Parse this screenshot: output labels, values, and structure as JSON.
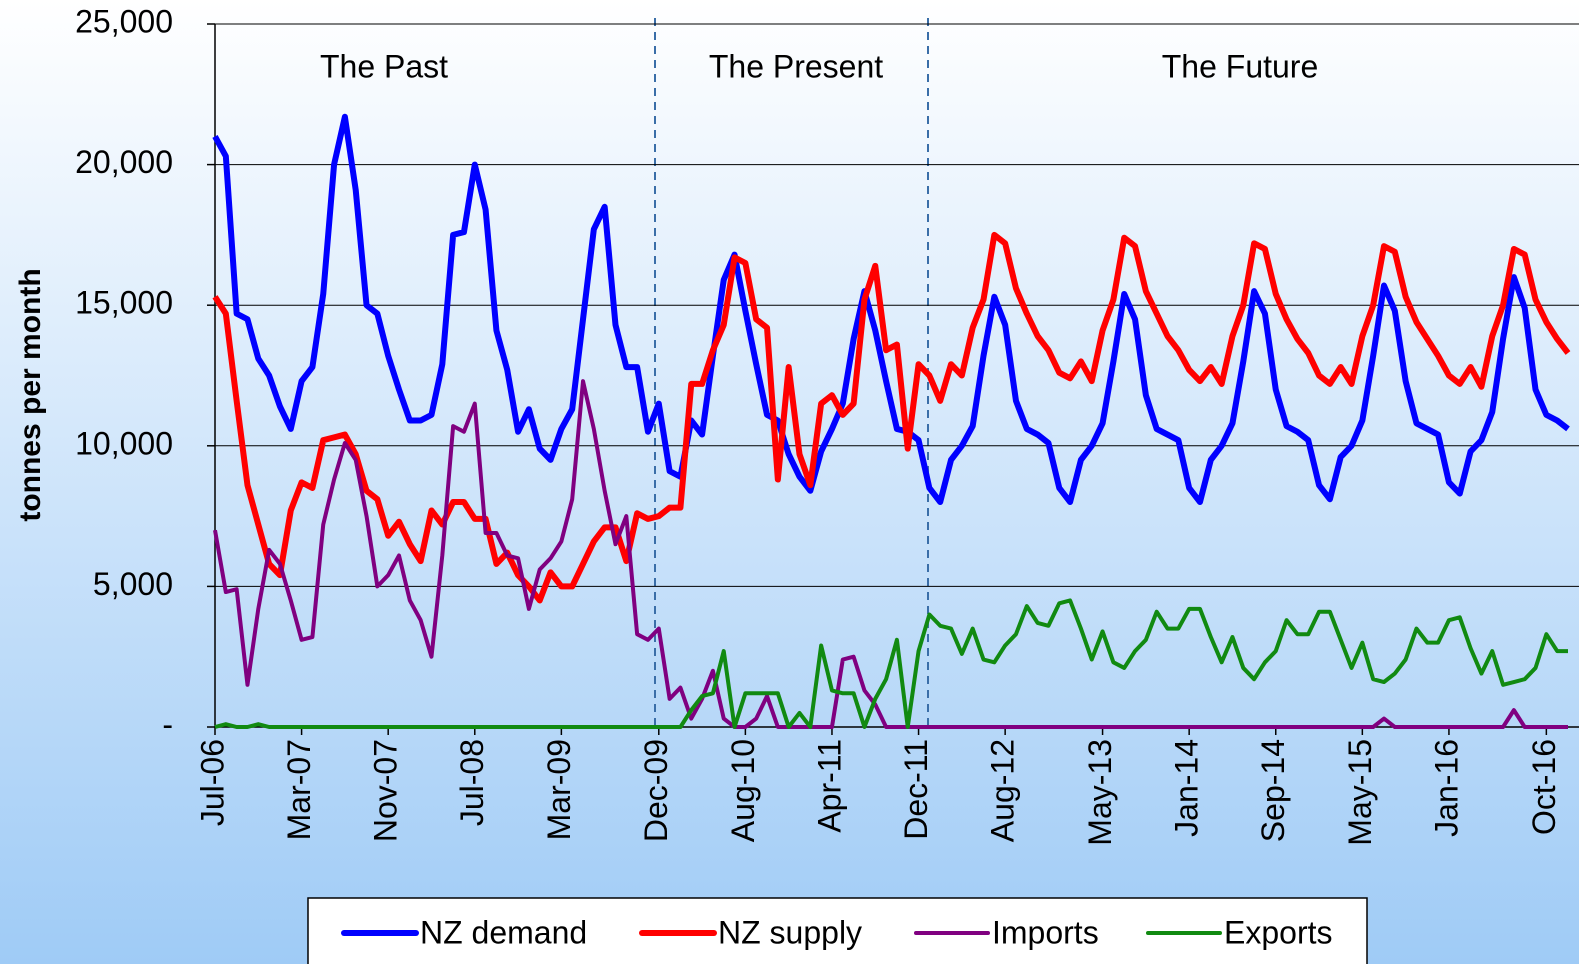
{
  "chart_data": {
    "type": "line",
    "y_label": "tonnes per month",
    "annotations": [
      "The Past",
      "The Present",
      "The Future"
    ],
    "categories": [
      "Jul-06",
      null,
      null,
      null,
      null,
      null,
      null,
      null,
      "Mar-07",
      null,
      null,
      null,
      null,
      null,
      null,
      null,
      "Nov-07",
      null,
      null,
      null,
      null,
      null,
      null,
      null,
      "Jul-08",
      null,
      null,
      null,
      null,
      null,
      null,
      null,
      "Mar-09",
      null,
      null,
      null,
      null,
      null,
      null,
      null,
      null,
      "Dec-09",
      null,
      null,
      null,
      null,
      null,
      null,
      null,
      "Aug-10",
      null,
      null,
      null,
      null,
      null,
      null,
      null,
      "Apr-11",
      null,
      null,
      null,
      null,
      null,
      null,
      null,
      "Dec-11",
      null,
      null,
      null,
      null,
      null,
      null,
      null,
      "Aug-12",
      null,
      null,
      null,
      null,
      null,
      null,
      null,
      null,
      "May-13",
      null,
      null,
      null,
      null,
      null,
      null,
      null,
      "Jan-14",
      null,
      null,
      null,
      null,
      null,
      null,
      null,
      "Sep-14",
      null,
      null,
      null,
      null,
      null,
      null,
      null,
      "May-15",
      null,
      null,
      null,
      null,
      null,
      null,
      null,
      "Jan-16",
      null,
      null,
      null,
      null,
      null,
      null,
      null,
      null,
      "Oct-16",
      null,
      null
    ],
    "series": [
      {
        "name": "NZ demand",
        "color": "#0000ff",
        "values": [
          21000,
          20300,
          14700,
          14500,
          13100,
          12500,
          11400,
          10600,
          12300,
          12800,
          15400,
          20000,
          21700,
          19100,
          15000,
          14700,
          13200,
          12000,
          10900,
          10900,
          11100,
          12900,
          17500,
          17600,
          20000,
          18400,
          14100,
          12700,
          10500,
          11300,
          9900,
          9500,
          10600,
          11300,
          14500,
          17700,
          18500,
          14300,
          12800,
          12800,
          10500,
          11500,
          9100,
          8900,
          10900,
          10400,
          13200,
          15900,
          16800,
          14800,
          12900,
          11100,
          10900,
          9700,
          8900,
          8400,
          9800,
          10600,
          11500,
          13800,
          15500,
          14100,
          12300,
          10600,
          10500,
          10200,
          8500,
          8000,
          9500,
          10000,
          10700,
          13200,
          15300,
          14300,
          11600,
          10600,
          10400,
          10100,
          8500,
          8000,
          9500,
          10000,
          10800,
          13000,
          15400,
          14500,
          11800,
          10600,
          10400,
          10200,
          8500,
          8000,
          9500,
          10000,
          10800,
          13000,
          15500,
          14700,
          12000,
          10700,
          10500,
          10200,
          8600,
          8100,
          9600,
          10000,
          10900,
          13200,
          15700,
          14800,
          12300,
          10800,
          10600,
          10400,
          8700,
          8300,
          9800,
          10200,
          11200,
          13800,
          16000,
          14900,
          12000,
          11100,
          10900,
          10600
        ]
      },
      {
        "name": "NZ supply",
        "color": "#ff0000",
        "values": [
          15300,
          14700,
          11600,
          8600,
          7200,
          5800,
          5400,
          7700,
          8700,
          8500,
          10200,
          10300,
          10400,
          9700,
          8400,
          8100,
          6800,
          7300,
          6500,
          5900,
          7700,
          7200,
          8000,
          8000,
          7400,
          7400,
          5800,
          6200,
          5400,
          5000,
          4500,
          5500,
          5000,
          5000,
          5800,
          6600,
          7100,
          7100,
          5900,
          7600,
          7400,
          7500,
          7800,
          7800,
          12200,
          12200,
          13400,
          14300,
          16700,
          16500,
          14500,
          14200,
          8800,
          12800,
          9700,
          8600,
          11500,
          11800,
          11100,
          11500,
          15200,
          16400,
          13400,
          13600,
          9900,
          12900,
          12500,
          11600,
          12900,
          12500,
          14200,
          15200,
          17500,
          17200,
          15600,
          14700,
          13900,
          13400,
          12600,
          12400,
          13000,
          12300,
          14100,
          15200,
          17400,
          17100,
          15500,
          14700,
          13900,
          13400,
          12700,
          12300,
          12800,
          12200,
          13900,
          15000,
          17200,
          17000,
          15400,
          14500,
          13800,
          13300,
          12500,
          12200,
          12800,
          12200,
          13900,
          15000,
          17100,
          16900,
          15300,
          14400,
          13800,
          13200,
          12500,
          12200,
          12800,
          12100,
          13900,
          15000,
          17000,
          16800,
          15200,
          14400,
          13800,
          13300
        ]
      },
      {
        "name": "Imports",
        "color": "#800080",
        "values": [
          7000,
          4800,
          4900,
          1500,
          4200,
          6300,
          5800,
          4500,
          3100,
          3200,
          7200,
          8800,
          10100,
          9500,
          7500,
          5000,
          5400,
          6100,
          4500,
          3800,
          2500,
          6100,
          10700,
          10500,
          11500,
          6900,
          6900,
          6100,
          6000,
          4200,
          5600,
          6000,
          6600,
          8100,
          12300,
          10600,
          8400,
          6500,
          7500,
          3300,
          3100,
          3500,
          1000,
          1400,
          300,
          1000,
          2000,
          300,
          0,
          0,
          300,
          1100,
          0,
          0,
          0,
          0,
          0,
          0,
          2400,
          2500,
          1300,
          800,
          0,
          0,
          0,
          0,
          0,
          0,
          0,
          0,
          0,
          0,
          0,
          0,
          0,
          0,
          0,
          0,
          0,
          0,
          0,
          0,
          0,
          0,
          0,
          0,
          0,
          0,
          0,
          0,
          0,
          0,
          0,
          0,
          0,
          0,
          0,
          0,
          0,
          0,
          0,
          0,
          0,
          0,
          0,
          0,
          0,
          0,
          300,
          0,
          0,
          0,
          0,
          0,
          0,
          0,
          0,
          0,
          0,
          0,
          600,
          0,
          0,
          0,
          0,
          0
        ]
      },
      {
        "name": "Exports",
        "color": "#118a11",
        "values": [
          0,
          100,
          0,
          0,
          100,
          0,
          0,
          0,
          0,
          0,
          0,
          0,
          0,
          0,
          0,
          0,
          0,
          0,
          0,
          0,
          0,
          0,
          0,
          0,
          0,
          0,
          0,
          0,
          0,
          0,
          0,
          0,
          0,
          0,
          0,
          0,
          0,
          0,
          0,
          0,
          0,
          0,
          0,
          0,
          600,
          1100,
          1200,
          2700,
          0,
          1200,
          1200,
          1200,
          1200,
          0,
          500,
          0,
          2900,
          1300,
          1200,
          1200,
          0,
          1000,
          1700,
          3100,
          0,
          2700,
          4000,
          3600,
          3500,
          2600,
          3500,
          2400,
          2300,
          2900,
          3300,
          4300,
          3700,
          3600,
          4400,
          4500,
          3500,
          2400,
          3400,
          2300,
          2100,
          2700,
          3100,
          4100,
          3500,
          3500,
          4200,
          4200,
          3200,
          2300,
          3200,
          2100,
          1700,
          2300,
          2700,
          3800,
          3300,
          3300,
          4100,
          4100,
          3100,
          2100,
          3000,
          1700,
          1600,
          1900,
          2400,
          3500,
          3000,
          3000,
          3800,
          3900,
          2800,
          1900,
          2700,
          1500,
          1600,
          1700,
          2100,
          3300,
          2700,
          2700
        ]
      }
    ],
    "ylim": [
      0,
      25000
    ],
    "yticks": [
      {
        "value": 0,
        "label": "-"
      },
      {
        "value": 5000,
        "label": "5,000"
      },
      {
        "value": 10000,
        "label": "10,000"
      },
      {
        "value": 15000,
        "label": "15,000"
      },
      {
        "value": 20000,
        "label": "20,000"
      },
      {
        "value": 25000,
        "label": "25,000"
      }
    ],
    "grid": true,
    "legend": "bottom"
  }
}
